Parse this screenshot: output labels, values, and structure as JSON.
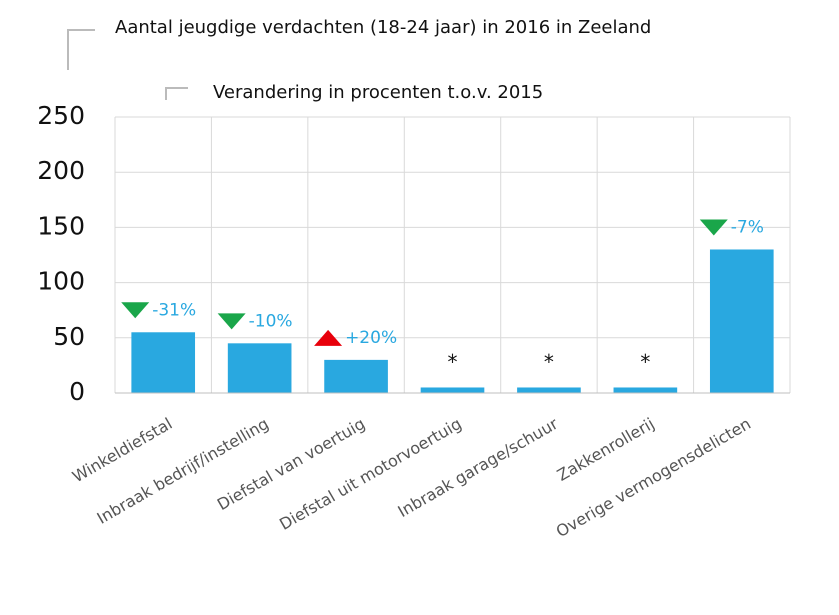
{
  "chart_data": {
    "type": "bar",
    "title": "Aantal jeugdige verdachten (18-24 jaar) in 2016 in Zeeland",
    "subtitle": "Verandering in procenten t.o.v. 2015",
    "categories": [
      "Winkeldiefstal",
      "Inbraak bedrijf/instelling",
      "Diefstal van voertuig",
      "Diefstal uit motorvoertuig",
      "Inbraak garage/schuur",
      "Zakkenrollerij",
      "Overige vermogensdelicten"
    ],
    "values": [
      55,
      45,
      30,
      5,
      5,
      5,
      130
    ],
    "color": "#29a8e0",
    "changes": [
      -31,
      -10,
      20,
      null,
      null,
      null,
      -7
    ],
    "change_labels": [
      "-31%",
      "-10%",
      "+20%",
      "*",
      "*",
      "*",
      "-7%"
    ],
    "up_color": "#e8000b",
    "down_color": "#1aa64a",
    "ylim": [
      0,
      250
    ],
    "yticks": [
      0,
      50,
      100,
      150,
      200,
      250
    ],
    "grid": true
  }
}
